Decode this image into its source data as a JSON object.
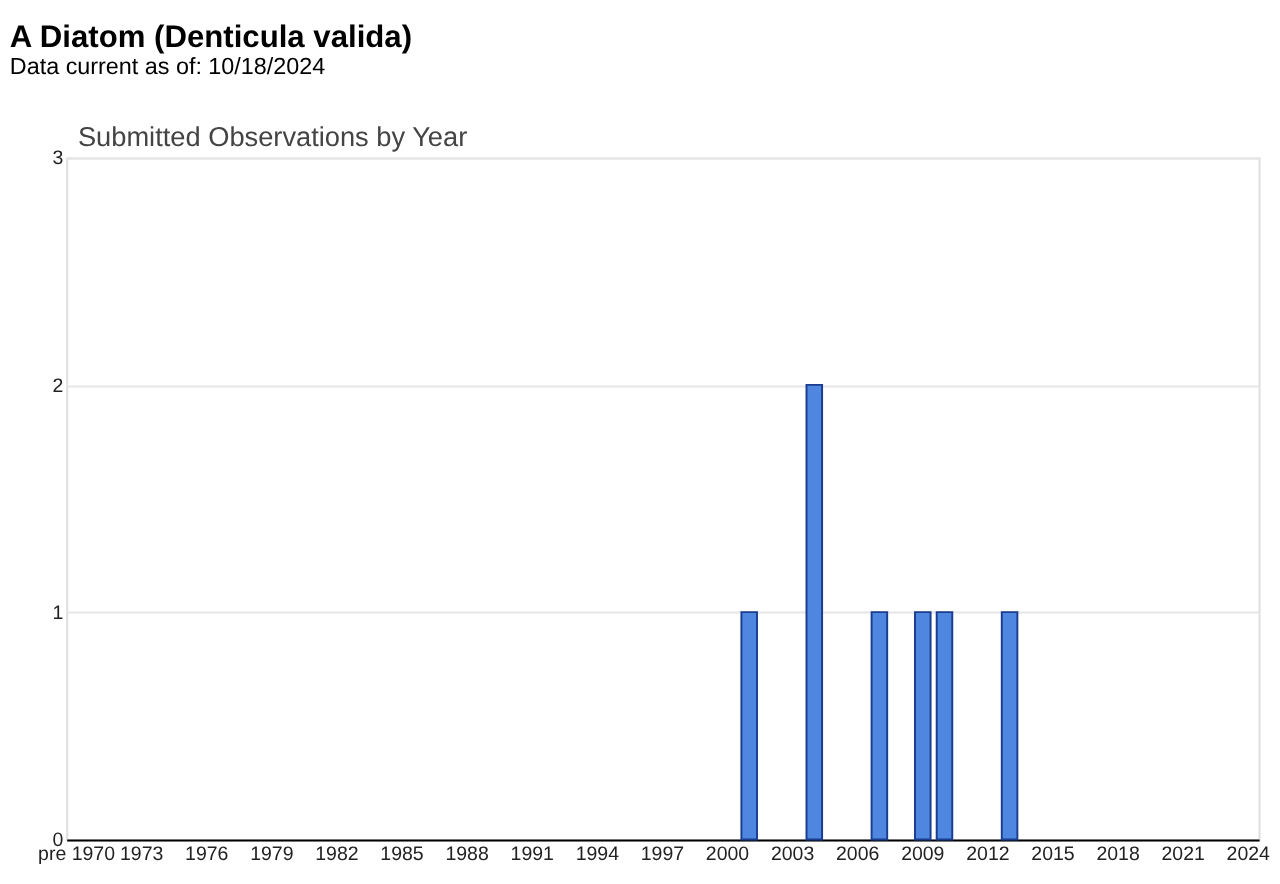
{
  "chart_data": {
    "type": "bar",
    "title": "A Diatom   (Denticula valida)",
    "subtitle": "Data current as of: 10/18/2024",
    "annotations": [
      "Submitted Observations by Year"
    ],
    "categories": [
      "pre 1970",
      null,
      null,
      "1973",
      null,
      null,
      "1976",
      null,
      null,
      "1979",
      null,
      null,
      "1982",
      null,
      null,
      "1985",
      null,
      null,
      "1988",
      null,
      null,
      "1991",
      null,
      null,
      "1994",
      null,
      null,
      "1997",
      null,
      null,
      "2000",
      null,
      null,
      "2003",
      null,
      null,
      "2006",
      null,
      null,
      "2009",
      null,
      null,
      "2012",
      null,
      null,
      "2015",
      null,
      null,
      "2018",
      null,
      null,
      "2021",
      null,
      null,
      "2024"
    ],
    "values": [
      0,
      0,
      0,
      0,
      0,
      0,
      0,
      0,
      0,
      0,
      0,
      0,
      0,
      0,
      0,
      0,
      0,
      0,
      0,
      0,
      0,
      0,
      0,
      0,
      0,
      0,
      0,
      0,
      0,
      0,
      0,
      1,
      0,
      0,
      2,
      0,
      0,
      1,
      0,
      1,
      1,
      0,
      0,
      1,
      0,
      0,
      0,
      0,
      0,
      0,
      0,
      0,
      0,
      0,
      0
    ],
    "color": "#4f86e0",
    "ylim": [
      0,
      3
    ],
    "yticks": [
      0,
      1,
      2,
      3
    ],
    "grid": "y"
  }
}
